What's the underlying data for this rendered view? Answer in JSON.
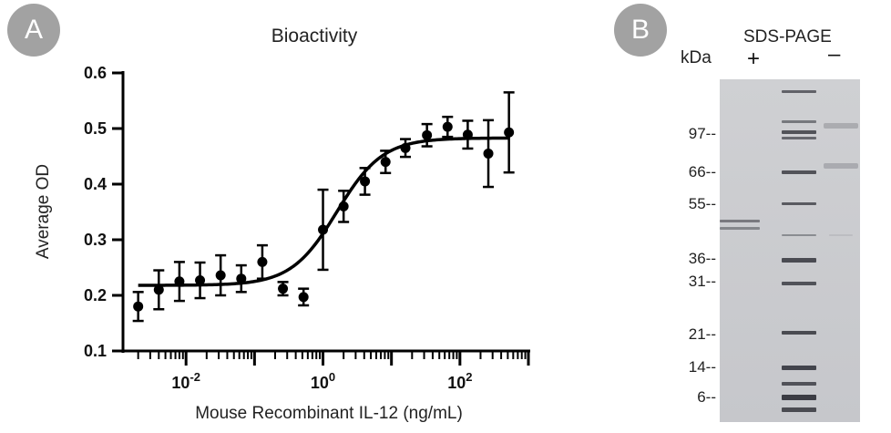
{
  "panel_a": {
    "badge": "A"
  },
  "panel_b": {
    "badge": "B"
  },
  "chart_data": {
    "type": "scatter",
    "title": "Bioactivity",
    "xlabel": "Mouse Recombinant IL-12 (ng/mL)",
    "ylabel": "Average OD",
    "x_scale": "log10",
    "xlim": [
      0.0012,
      1000
    ],
    "ylim": [
      0.1,
      0.6
    ],
    "y_ticks": [
      "0.1",
      "0.2",
      "0.3",
      "0.4",
      "0.5",
      "0.6"
    ],
    "x_tick_labels": [
      {
        "base": "10",
        "exp": "-2",
        "value": 0.01
      },
      {
        "base": "10",
        "exp": "0",
        "value": 1
      },
      {
        "base": "10",
        "exp": "2",
        "value": 100
      }
    ],
    "series": [
      {
        "x": [
          0.002,
          0.004,
          0.008,
          0.016,
          0.032,
          0.064,
          0.13,
          0.26,
          0.52,
          1.0,
          2.0,
          4.1,
          8.2,
          16,
          33,
          66,
          130,
          260,
          520
        ],
        "y": [
          0.18,
          0.21,
          0.225,
          0.227,
          0.236,
          0.23,
          0.26,
          0.212,
          0.197,
          0.318,
          0.36,
          0.405,
          0.44,
          0.465,
          0.488,
          0.503,
          0.489,
          0.455,
          0.493
        ],
        "error": [
          0.026,
          0.035,
          0.035,
          0.032,
          0.036,
          0.024,
          0.03,
          0.012,
          0.015,
          0.072,
          0.028,
          0.024,
          0.02,
          0.016,
          0.02,
          0.018,
          0.025,
          0.06,
          0.072
        ]
      }
    ],
    "fit_curve": {
      "model": "4PL",
      "bottom": 0.218,
      "top": 0.483,
      "ec50": 1.6,
      "hill": 1.3
    }
  },
  "gel": {
    "title": "SDS-PAGE",
    "unit": "kDa",
    "lane_plus": "+",
    "lane_minus": "–",
    "markers": [
      "97--",
      "66--",
      "55--",
      "36--",
      "31--",
      "21--",
      "14--",
      "6--"
    ]
  }
}
